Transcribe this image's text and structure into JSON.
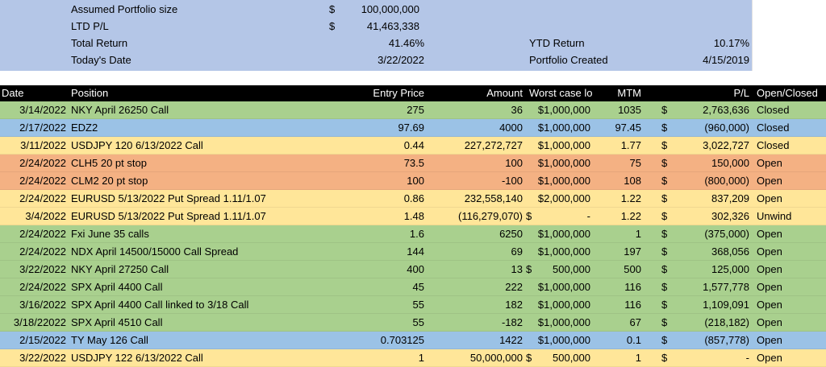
{
  "summary": {
    "portfolio_size_label": "Assumed Portfolio size",
    "portfolio_size_currency": "$",
    "portfolio_size_value": "100,000,000",
    "ltd_pl_label": "LTD P/L",
    "ltd_pl_currency": "$",
    "ltd_pl_value": "41,463,338",
    "total_return_label": "Total Return",
    "total_return_value": "41.46%",
    "ytd_return_label": "YTD Return",
    "ytd_return_value": "10.17%",
    "todays_date_label": "Today's Date",
    "todays_date_value": "3/22/2022",
    "portfolio_created_label": "Portfolio Created",
    "portfolio_created_value": "4/15/2019"
  },
  "headers": {
    "date": "Date",
    "position": "Position",
    "entry_price": "Entry Price",
    "amount": "Amount",
    "worst_case": "Worst case lo",
    "mtm": "MTM",
    "pl": "P/L",
    "open_closed": "Open/Closed"
  },
  "colors": {
    "green": "#a9d08e",
    "blue": "#9bc2e6",
    "yellow": "#ffe699",
    "orange": "#f4b183",
    "summary": "#b4c6e7",
    "header": "#000000"
  },
  "rows": [
    {
      "date": "3/14/2022",
      "position": "NKY April 26250 Call",
      "entry": "275",
      "amount": "36",
      "wc_dollar": "",
      "worst_case": "$1,000,000",
      "mtm": "1035",
      "pl_dollar": "$",
      "pl": "2,763,636",
      "status": "Closed",
      "color": "green"
    },
    {
      "date": "2/17/2022",
      "position": "EDZ2",
      "entry": "97.69",
      "amount": "4000",
      "wc_dollar": "",
      "worst_case": "$1,000,000",
      "mtm": "97.45",
      "pl_dollar": "$",
      "pl": "(960,000)",
      "status": "Closed",
      "color": "blue"
    },
    {
      "date": "3/11/2022",
      "position": "USDJPY 120 6/13/2022 Call",
      "entry": "0.44",
      "amount": "227,272,727",
      "wc_dollar": "",
      "worst_case": "$1,000,000",
      "mtm": "1.77",
      "pl_dollar": "$",
      "pl": "3,022,727",
      "status": "Closed",
      "color": "yellow"
    },
    {
      "date": "2/24/2022",
      "position": "CLH5 20 pt stop",
      "entry": "73.5",
      "amount": "100",
      "wc_dollar": "",
      "worst_case": "$1,000,000",
      "mtm": "75",
      "pl_dollar": "$",
      "pl": "150,000",
      "status": "Open",
      "color": "orange"
    },
    {
      "date": "2/24/2022",
      "position": "CLM2 20 pt stop",
      "entry": "100",
      "amount": "-100",
      "wc_dollar": "",
      "worst_case": "$1,000,000",
      "mtm": "108",
      "pl_dollar": "$",
      "pl": "(800,000)",
      "status": "Open",
      "color": "orange"
    },
    {
      "date": "2/24/2022",
      "position": "EURUSD 5/13/2022 Put Spread 1.11/1.07",
      "entry": "0.86",
      "amount": "232,558,140",
      "wc_dollar": "",
      "worst_case": "$2,000,000",
      "mtm": "1.22",
      "pl_dollar": "$",
      "pl": "837,209",
      "status": "Open",
      "color": "yellow"
    },
    {
      "date": "3/4/2022",
      "position": "EURUSD 5/13/2022 Put Spread 1.11/1.07",
      "entry": "1.48",
      "amount": "(116,279,070)",
      "wc_dollar": "$",
      "worst_case": "-",
      "mtm": "1.22",
      "pl_dollar": "$",
      "pl": "302,326",
      "status": "Unwind",
      "color": "yellow"
    },
    {
      "date": "2/24/2022",
      "position": "Fxi June 35 calls",
      "entry": "1.6",
      "amount": "6250",
      "wc_dollar": "",
      "worst_case": "$1,000,000",
      "mtm": "1",
      "pl_dollar": "$",
      "pl": "(375,000)",
      "status": "Open",
      "color": "green"
    },
    {
      "date": "2/24/2022",
      "position": "NDX April 14500/15000 Call Spread",
      "entry": "144",
      "amount": "69",
      "wc_dollar": "",
      "worst_case": "$1,000,000",
      "mtm": "197",
      "pl_dollar": "$",
      "pl": "368,056",
      "status": "Open",
      "color": "green"
    },
    {
      "date": "3/22/2022",
      "position": "NKY April 27250 Call",
      "entry": "400",
      "amount": "13",
      "wc_dollar": "$",
      "worst_case": "500,000",
      "mtm": "500",
      "pl_dollar": "$",
      "pl": "125,000",
      "status": "Open",
      "color": "green"
    },
    {
      "date": "2/24/2022",
      "position": "SPX April 4400 Call",
      "entry": "45",
      "amount": "222",
      "wc_dollar": "",
      "worst_case": "$1,000,000",
      "mtm": "116",
      "pl_dollar": "$",
      "pl": "1,577,778",
      "status": "Open",
      "color": "green"
    },
    {
      "date": "3/16/2022",
      "position": "SPX April 4400 Call linked to 3/18 Call",
      "entry": "55",
      "amount": "182",
      "wc_dollar": "",
      "worst_case": "$1,000,000",
      "mtm": "116",
      "pl_dollar": "$",
      "pl": "1,109,091",
      "status": "Open",
      "color": "green"
    },
    {
      "date": "3/18/22022",
      "position": "SPX April 4510 Call",
      "entry": "55",
      "amount": "-182",
      "wc_dollar": "",
      "worst_case": "$1,000,000",
      "mtm": "67",
      "pl_dollar": "$",
      "pl": "(218,182)",
      "status": "Open",
      "color": "green"
    },
    {
      "date": "2/15/2022",
      "position": "TY May 126 Call",
      "entry": "0.703125",
      "amount": "1422",
      "wc_dollar": "",
      "worst_case": "$1,000,000",
      "mtm": "0.1",
      "pl_dollar": "$",
      "pl": "(857,778)",
      "status": "Open",
      "color": "blue"
    },
    {
      "date": "3/22/2022",
      "position": "USDJPY 122 6/13/2022 Call",
      "entry": "1",
      "amount": "50,000,000",
      "wc_dollar": "$",
      "worst_case": "500,000",
      "mtm": "1",
      "pl_dollar": "$",
      "pl": "-",
      "status": "Open",
      "color": "yellow"
    }
  ]
}
